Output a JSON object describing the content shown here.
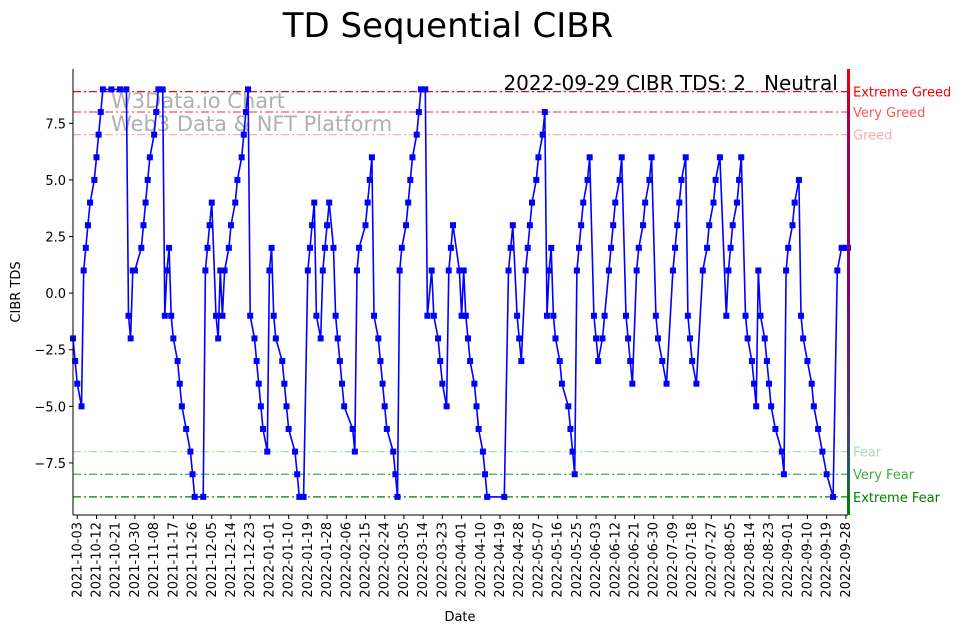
{
  "chart_data": {
    "type": "line",
    "title": "TD Sequential CIBR",
    "xlabel": "Date",
    "ylabel": "CIBR TDS",
    "ylim": [
      -9.8,
      9.9
    ],
    "grid": false,
    "x_range": [
      "2021-10-01",
      "2022-09-29"
    ],
    "y_ticks": [
      -7.5,
      -5.0,
      -2.5,
      0.0,
      2.5,
      5.0,
      7.5
    ],
    "y_tick_labels": [
      "−7.5",
      "−5.0",
      "−2.5",
      "0.0",
      "2.5",
      "5.0",
      "7.5"
    ],
    "x_tick_labels": [
      "2021-10-03",
      "2021-10-12",
      "2021-10-21",
      "2021-10-30",
      "2021-11-08",
      "2021-11-17",
      "2021-11-26",
      "2021-12-05",
      "2021-12-14",
      "2021-12-23",
      "2022-01-01",
      "2022-01-10",
      "2022-01-19",
      "2022-01-28",
      "2022-02-06",
      "2022-02-15",
      "2022-02-24",
      "2022-03-05",
      "2022-03-14",
      "2022-03-23",
      "2022-04-01",
      "2022-04-10",
      "2022-04-19",
      "2022-04-28",
      "2022-05-07",
      "2022-05-16",
      "2022-05-25",
      "2022-06-03",
      "2022-06-12",
      "2022-06-21",
      "2022-06-30",
      "2022-07-09",
      "2022-07-18",
      "2022-07-27",
      "2022-08-05",
      "2022-08-14",
      "2022-08-23",
      "2022-09-01",
      "2022-09-10",
      "2022-09-19",
      "2022-09-28"
    ],
    "series": [
      {
        "color": "#0000ff",
        "marker": "square",
        "points": [
          [
            "2021-10-01",
            -2
          ],
          [
            "2021-10-02",
            -3
          ],
          [
            "2021-10-03",
            -4
          ],
          [
            "2021-10-05",
            -5
          ],
          [
            "2021-10-06",
            1
          ],
          [
            "2021-10-07",
            2
          ],
          [
            "2021-10-08",
            3
          ],
          [
            "2021-10-09",
            4
          ],
          [
            "2021-10-11",
            5
          ],
          [
            "2021-10-12",
            6
          ],
          [
            "2021-10-13",
            7
          ],
          [
            "2021-10-14",
            8
          ],
          [
            "2021-10-15",
            9
          ],
          [
            "2021-10-19",
            9
          ],
          [
            "2021-10-23",
            9
          ],
          [
            "2021-10-26",
            9
          ],
          [
            "2021-10-27",
            -1
          ],
          [
            "2021-10-28",
            -2
          ],
          [
            "2021-10-29",
            1
          ],
          [
            "2021-10-30",
            1
          ],
          [
            "2021-11-02",
            2
          ],
          [
            "2021-11-03",
            3
          ],
          [
            "2021-11-04",
            4
          ],
          [
            "2021-11-05",
            5
          ],
          [
            "2021-11-06",
            6
          ],
          [
            "2021-11-08",
            7
          ],
          [
            "2021-11-09",
            8
          ],
          [
            "2021-11-10",
            9
          ],
          [
            "2021-11-12",
            9
          ],
          [
            "2021-11-13",
            -1
          ],
          [
            "2021-11-14",
            1
          ],
          [
            "2021-11-15",
            2
          ],
          [
            "2021-11-16",
            -1
          ],
          [
            "2021-11-17",
            -2
          ],
          [
            "2021-11-19",
            -3
          ],
          [
            "2021-11-20",
            -4
          ],
          [
            "2021-11-21",
            -5
          ],
          [
            "2021-11-23",
            -6
          ],
          [
            "2021-11-25",
            -7
          ],
          [
            "2021-11-26",
            -8
          ],
          [
            "2021-11-27",
            -9
          ],
          [
            "2021-12-01",
            -9
          ],
          [
            "2021-12-02",
            1
          ],
          [
            "2021-12-03",
            2
          ],
          [
            "2021-12-04",
            3
          ],
          [
            "2021-12-05",
            4
          ],
          [
            "2021-12-07",
            -1
          ],
          [
            "2021-12-08",
            -2
          ],
          [
            "2021-12-09",
            1
          ],
          [
            "2021-12-10",
            -1
          ],
          [
            "2021-12-11",
            1
          ],
          [
            "2021-12-13",
            2
          ],
          [
            "2021-12-14",
            3
          ],
          [
            "2021-12-16",
            4
          ],
          [
            "2021-12-17",
            5
          ],
          [
            "2021-12-19",
            6
          ],
          [
            "2021-12-20",
            7
          ],
          [
            "2021-12-21",
            8
          ],
          [
            "2021-12-22",
            9
          ],
          [
            "2021-12-23",
            -1
          ],
          [
            "2021-12-25",
            -2
          ],
          [
            "2021-12-26",
            -3
          ],
          [
            "2021-12-27",
            -4
          ],
          [
            "2021-12-28",
            -5
          ],
          [
            "2021-12-29",
            -6
          ],
          [
            "2021-12-31",
            -7
          ],
          [
            "2022-01-01",
            1
          ],
          [
            "2022-01-02",
            2
          ],
          [
            "2022-01-03",
            -1
          ],
          [
            "2022-01-04",
            -2
          ],
          [
            "2022-01-07",
            -3
          ],
          [
            "2022-01-08",
            -4
          ],
          [
            "2022-01-09",
            -5
          ],
          [
            "2022-01-10",
            -6
          ],
          [
            "2022-01-13",
            -7
          ],
          [
            "2022-01-14",
            -8
          ],
          [
            "2022-01-15",
            -9
          ],
          [
            "2022-01-17",
            -9
          ],
          [
            "2022-01-19",
            1
          ],
          [
            "2022-01-20",
            2
          ],
          [
            "2022-01-21",
            3
          ],
          [
            "2022-01-22",
            4
          ],
          [
            "2022-01-23",
            -1
          ],
          [
            "2022-01-25",
            -2
          ],
          [
            "2022-01-26",
            1
          ],
          [
            "2022-01-27",
            2
          ],
          [
            "2022-01-28",
            3
          ],
          [
            "2022-01-29",
            4
          ],
          [
            "2022-01-31",
            2
          ],
          [
            "2022-02-01",
            -1
          ],
          [
            "2022-02-02",
            -2
          ],
          [
            "2022-02-03",
            -3
          ],
          [
            "2022-02-04",
            -4
          ],
          [
            "2022-02-05",
            -5
          ],
          [
            "2022-02-09",
            -6
          ],
          [
            "2022-02-10",
            -7
          ],
          [
            "2022-02-11",
            1
          ],
          [
            "2022-02-12",
            2
          ],
          [
            "2022-02-15",
            3
          ],
          [
            "2022-02-16",
            4
          ],
          [
            "2022-02-17",
            5
          ],
          [
            "2022-02-18",
            6
          ],
          [
            "2022-02-19",
            -1
          ],
          [
            "2022-02-21",
            -2
          ],
          [
            "2022-02-22",
            -3
          ],
          [
            "2022-02-23",
            -4
          ],
          [
            "2022-02-24",
            -5
          ],
          [
            "2022-02-25",
            -6
          ],
          [
            "2022-02-28",
            -7
          ],
          [
            "2022-03-01",
            -8
          ],
          [
            "2022-03-02",
            -9
          ],
          [
            "2022-03-03",
            1
          ],
          [
            "2022-03-04",
            2
          ],
          [
            "2022-03-06",
            3
          ],
          [
            "2022-03-07",
            4
          ],
          [
            "2022-03-08",
            5
          ],
          [
            "2022-03-09",
            6
          ],
          [
            "2022-03-11",
            7
          ],
          [
            "2022-03-12",
            8
          ],
          [
            "2022-03-13",
            9
          ],
          [
            "2022-03-15",
            9
          ],
          [
            "2022-03-16",
            -1
          ],
          [
            "2022-03-18",
            1
          ],
          [
            "2022-03-19",
            -1
          ],
          [
            "2022-03-21",
            -2
          ],
          [
            "2022-03-22",
            -3
          ],
          [
            "2022-03-23",
            -4
          ],
          [
            "2022-03-25",
            -5
          ],
          [
            "2022-03-26",
            1
          ],
          [
            "2022-03-27",
            2
          ],
          [
            "2022-03-28",
            3
          ],
          [
            "2022-03-31",
            1
          ],
          [
            "2022-04-01",
            -1
          ],
          [
            "2022-04-02",
            1
          ],
          [
            "2022-04-03",
            -1
          ],
          [
            "2022-04-04",
            -2
          ],
          [
            "2022-04-05",
            -3
          ],
          [
            "2022-04-07",
            -4
          ],
          [
            "2022-04-08",
            -5
          ],
          [
            "2022-04-09",
            -6
          ],
          [
            "2022-04-11",
            -7
          ],
          [
            "2022-04-12",
            -8
          ],
          [
            "2022-04-13",
            -9
          ],
          [
            "2022-04-21",
            -9
          ],
          [
            "2022-04-23",
            1
          ],
          [
            "2022-04-24",
            2
          ],
          [
            "2022-04-25",
            3
          ],
          [
            "2022-04-27",
            -1
          ],
          [
            "2022-04-28",
            -2
          ],
          [
            "2022-04-29",
            -3
          ],
          [
            "2022-05-01",
            1
          ],
          [
            "2022-05-02",
            2
          ],
          [
            "2022-05-03",
            3
          ],
          [
            "2022-05-04",
            4
          ],
          [
            "2022-05-06",
            5
          ],
          [
            "2022-05-07",
            6
          ],
          [
            "2022-05-09",
            7
          ],
          [
            "2022-05-10",
            8
          ],
          [
            "2022-05-11",
            -1
          ],
          [
            "2022-05-12",
            1
          ],
          [
            "2022-05-13",
            2
          ],
          [
            "2022-05-14",
            -1
          ],
          [
            "2022-05-15",
            -2
          ],
          [
            "2022-05-17",
            -3
          ],
          [
            "2022-05-18",
            -4
          ],
          [
            "2022-05-21",
            -5
          ],
          [
            "2022-05-22",
            -6
          ],
          [
            "2022-05-23",
            -7
          ],
          [
            "2022-05-24",
            -8
          ],
          [
            "2022-05-25",
            1
          ],
          [
            "2022-05-26",
            2
          ],
          [
            "2022-05-27",
            3
          ],
          [
            "2022-05-28",
            4
          ],
          [
            "2022-05-30",
            5
          ],
          [
            "2022-05-31",
            6
          ],
          [
            "2022-06-02",
            -1
          ],
          [
            "2022-06-03",
            -2
          ],
          [
            "2022-06-04",
            -3
          ],
          [
            "2022-06-06",
            -2
          ],
          [
            "2022-06-07",
            -1
          ],
          [
            "2022-06-09",
            1
          ],
          [
            "2022-06-10",
            2
          ],
          [
            "2022-06-11",
            3
          ],
          [
            "2022-06-12",
            4
          ],
          [
            "2022-06-14",
            5
          ],
          [
            "2022-06-15",
            6
          ],
          [
            "2022-06-17",
            -1
          ],
          [
            "2022-06-18",
            -2
          ],
          [
            "2022-06-19",
            -3
          ],
          [
            "2022-06-20",
            -4
          ],
          [
            "2022-06-22",
            1
          ],
          [
            "2022-06-23",
            2
          ],
          [
            "2022-06-25",
            3
          ],
          [
            "2022-06-26",
            4
          ],
          [
            "2022-06-28",
            5
          ],
          [
            "2022-06-29",
            6
          ],
          [
            "2022-07-01",
            -1
          ],
          [
            "2022-07-02",
            -2
          ],
          [
            "2022-07-04",
            -3
          ],
          [
            "2022-07-06",
            -4
          ],
          [
            "2022-07-09",
            1
          ],
          [
            "2022-07-10",
            2
          ],
          [
            "2022-07-11",
            3
          ],
          [
            "2022-07-12",
            4
          ],
          [
            "2022-07-13",
            5
          ],
          [
            "2022-07-15",
            6
          ],
          [
            "2022-07-16",
            -1
          ],
          [
            "2022-07-17",
            -2
          ],
          [
            "2022-07-18",
            -3
          ],
          [
            "2022-07-20",
            -4
          ],
          [
            "2022-07-23",
            1
          ],
          [
            "2022-07-25",
            2
          ],
          [
            "2022-07-26",
            3
          ],
          [
            "2022-07-28",
            4
          ],
          [
            "2022-07-29",
            5
          ],
          [
            "2022-07-31",
            6
          ],
          [
            "2022-08-03",
            -1
          ],
          [
            "2022-08-04",
            1
          ],
          [
            "2022-08-05",
            2
          ],
          [
            "2022-08-06",
            3
          ],
          [
            "2022-08-08",
            4
          ],
          [
            "2022-08-09",
            5
          ],
          [
            "2022-08-10",
            6
          ],
          [
            "2022-08-12",
            -1
          ],
          [
            "2022-08-13",
            -2
          ],
          [
            "2022-08-15",
            -3
          ],
          [
            "2022-08-16",
            -4
          ],
          [
            "2022-08-17",
            -5
          ],
          [
            "2022-08-18",
            1
          ],
          [
            "2022-08-19",
            -1
          ],
          [
            "2022-08-21",
            -2
          ],
          [
            "2022-08-22",
            -3
          ],
          [
            "2022-08-23",
            -4
          ],
          [
            "2022-08-24",
            -5
          ],
          [
            "2022-08-26",
            -6
          ],
          [
            "2022-08-29",
            -7
          ],
          [
            "2022-08-30",
            -8
          ],
          [
            "2022-08-31",
            1
          ],
          [
            "2022-09-01",
            2
          ],
          [
            "2022-09-03",
            3
          ],
          [
            "2022-09-04",
            4
          ],
          [
            "2022-09-06",
            5
          ],
          [
            "2022-09-07",
            -1
          ],
          [
            "2022-09-08",
            -2
          ],
          [
            "2022-09-10",
            -3
          ],
          [
            "2022-09-12",
            -4
          ],
          [
            "2022-09-13",
            -5
          ],
          [
            "2022-09-15",
            -6
          ],
          [
            "2022-09-17",
            -7
          ],
          [
            "2022-09-19",
            -8
          ],
          [
            "2022-09-22",
            -9
          ],
          [
            "2022-09-24",
            1
          ],
          [
            "2022-09-26",
            2
          ],
          [
            "2022-09-28",
            2
          ],
          [
            "2022-09-29",
            2
          ]
        ]
      }
    ],
    "reference_lines": [
      {
        "label": "Extreme Greed",
        "y": 8.9,
        "color": "#ff0000"
      },
      {
        "label": "Very Greed",
        "y": 8.0,
        "color": "#ff5555"
      },
      {
        "label": "Greed",
        "y": 7.0,
        "color": "#ffaaaa"
      },
      {
        "label": "Fear",
        "y": -7.0,
        "color": "#aaddaa"
      },
      {
        "label": "Very Fear",
        "y": -8.0,
        "color": "#44aa44"
      },
      {
        "label": "Extreme Fear",
        "y": -9.0,
        "color": "#008000"
      }
    ],
    "watermark": [
      "W3Data.io Chart",
      "Web3 Data & NFT Platform"
    ],
    "status_text": "2022-09-29 CIBR TDS: 2",
    "status_label": "Neutral",
    "status_label_color": "#800080"
  }
}
